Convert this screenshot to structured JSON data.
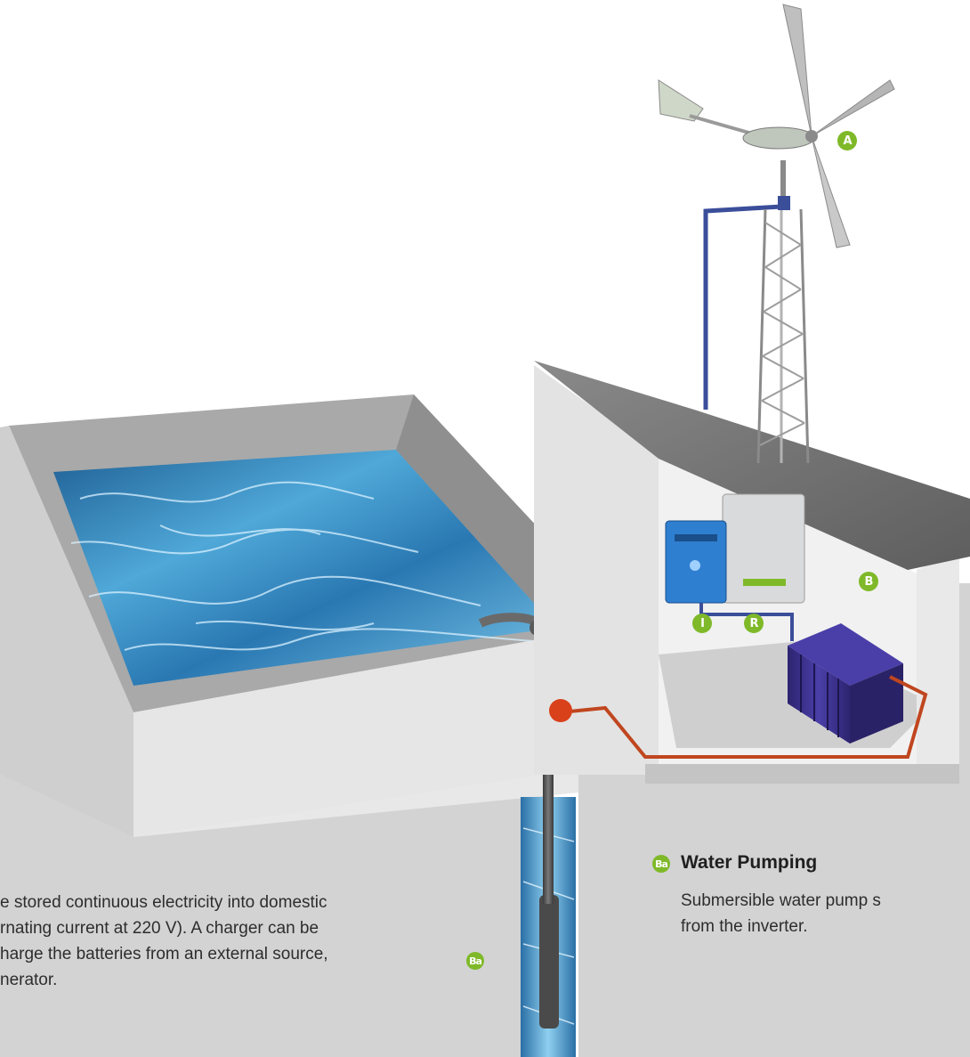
{
  "labels": {
    "wind_turbine": "A",
    "batteries": "B",
    "inverter": "I",
    "regulator": "R",
    "pump": "Ba"
  },
  "left_text": {
    "line1": "e stored continuous electricity into domestic",
    "line2": "rnating current at 220 V). A charger can be",
    "line3": "harge the batteries from an external source,",
    "line4": "nerator."
  },
  "water_pumping": {
    "badge": "Ba",
    "title": "Water Pumping",
    "line1": "Submersible water pump s",
    "line2": "from the inverter."
  },
  "colors": {
    "badge_green": "#7fb929",
    "panel_grey": "#d3d3d3",
    "water_blue": "#3d8fc4",
    "cable_red": "#c0461f",
    "cable_blue": "#3b4e9a",
    "battery_purple": "#3a2f8a"
  }
}
